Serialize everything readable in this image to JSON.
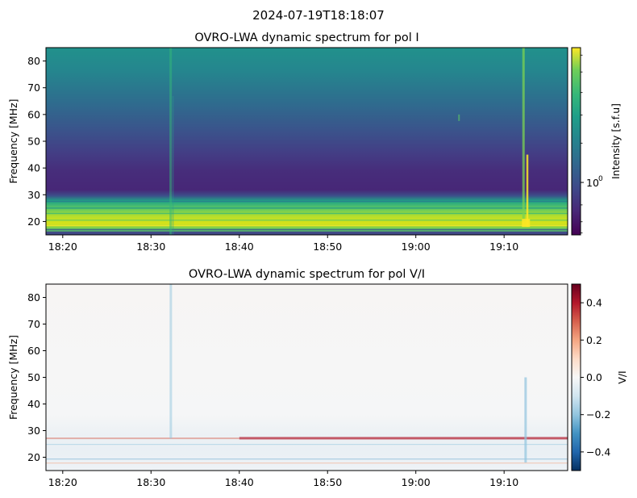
{
  "figure": {
    "suptitle": "2024-07-19T18:18:07"
  },
  "chart_data": [
    {
      "type": "heatmap",
      "title": "OVRO-LWA dynamic spectrum for pol I",
      "xlabel": "",
      "ylabel": "Frequency [MHz]",
      "x_ticks": [
        "18:20",
        "18:30",
        "18:40",
        "18:50",
        "19:00",
        "19:10"
      ],
      "x_tick_minutes": [
        20,
        30,
        40,
        50,
        60,
        70
      ],
      "xlim_minutes": [
        18.1,
        77.2
      ],
      "y_ticks": [
        20,
        30,
        40,
        50,
        60,
        70,
        80
      ],
      "ylim": [
        15,
        85
      ],
      "colormap": "viridis",
      "colorbar": {
        "label": "Intensity [s.f.u]",
        "scale": "log",
        "tick_label": "10",
        "tick_exponent": "0"
      },
      "features": {
        "background": "high intensity at 15-30 MHz decreasing toward 30-45 MHz, rising again toward 85 MHz",
        "bursts_at": [
          "18:32",
          "19:12"
        ]
      }
    },
    {
      "type": "heatmap",
      "title": "OVRO-LWA dynamic spectrum for pol V/I",
      "xlabel": "",
      "ylabel": "Frequency [MHz]",
      "x_ticks": [
        "18:20",
        "18:30",
        "18:40",
        "18:50",
        "19:00",
        "19:10"
      ],
      "x_tick_minutes": [
        20,
        30,
        40,
        50,
        60,
        70
      ],
      "xlim_minutes": [
        18.1,
        77.2
      ],
      "y_ticks": [
        20,
        30,
        40,
        50,
        60,
        70,
        80
      ],
      "ylim": [
        15,
        85
      ],
      "colormap": "RdBu_r",
      "colorbar": {
        "label": "V/I",
        "ticks": [
          0.4,
          0.2,
          0.0,
          -0.2,
          -0.4
        ],
        "tick_labels": [
          "0.4",
          "0.2",
          "0.0",
          "−0.2",
          "−0.4"
        ],
        "range": [
          -0.5,
          0.5
        ]
      },
      "features": {
        "red_band_mhz": 27,
        "bursts_at": [
          "18:32",
          "19:12"
        ]
      }
    }
  ]
}
